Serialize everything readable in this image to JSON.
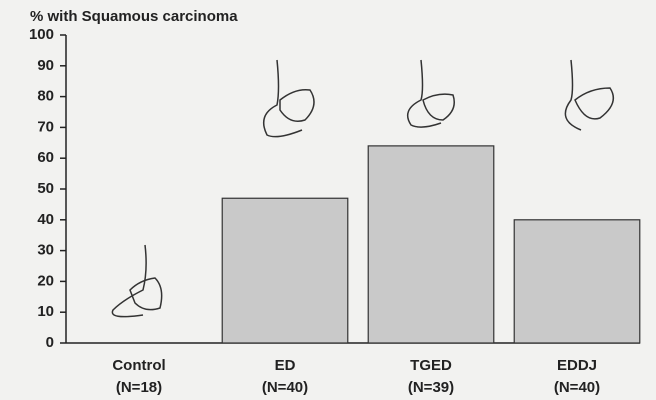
{
  "chart_data": {
    "type": "bar",
    "y_label": "% with Squamous carcinoma",
    "categories": [
      "Control",
      "ED",
      "TGED",
      "EDDJ"
    ],
    "sample_sizes": [
      "(N=18)",
      "(N=40)",
      "(N=39)",
      "(N=40)"
    ],
    "values": [
      0,
      47,
      64,
      40
    ],
    "color": "#c9c9c9",
    "ylim": [
      0,
      100
    ],
    "yticks": [
      0,
      10,
      20,
      30,
      40,
      50,
      60,
      70,
      80,
      90,
      100
    ],
    "grid": false
  }
}
